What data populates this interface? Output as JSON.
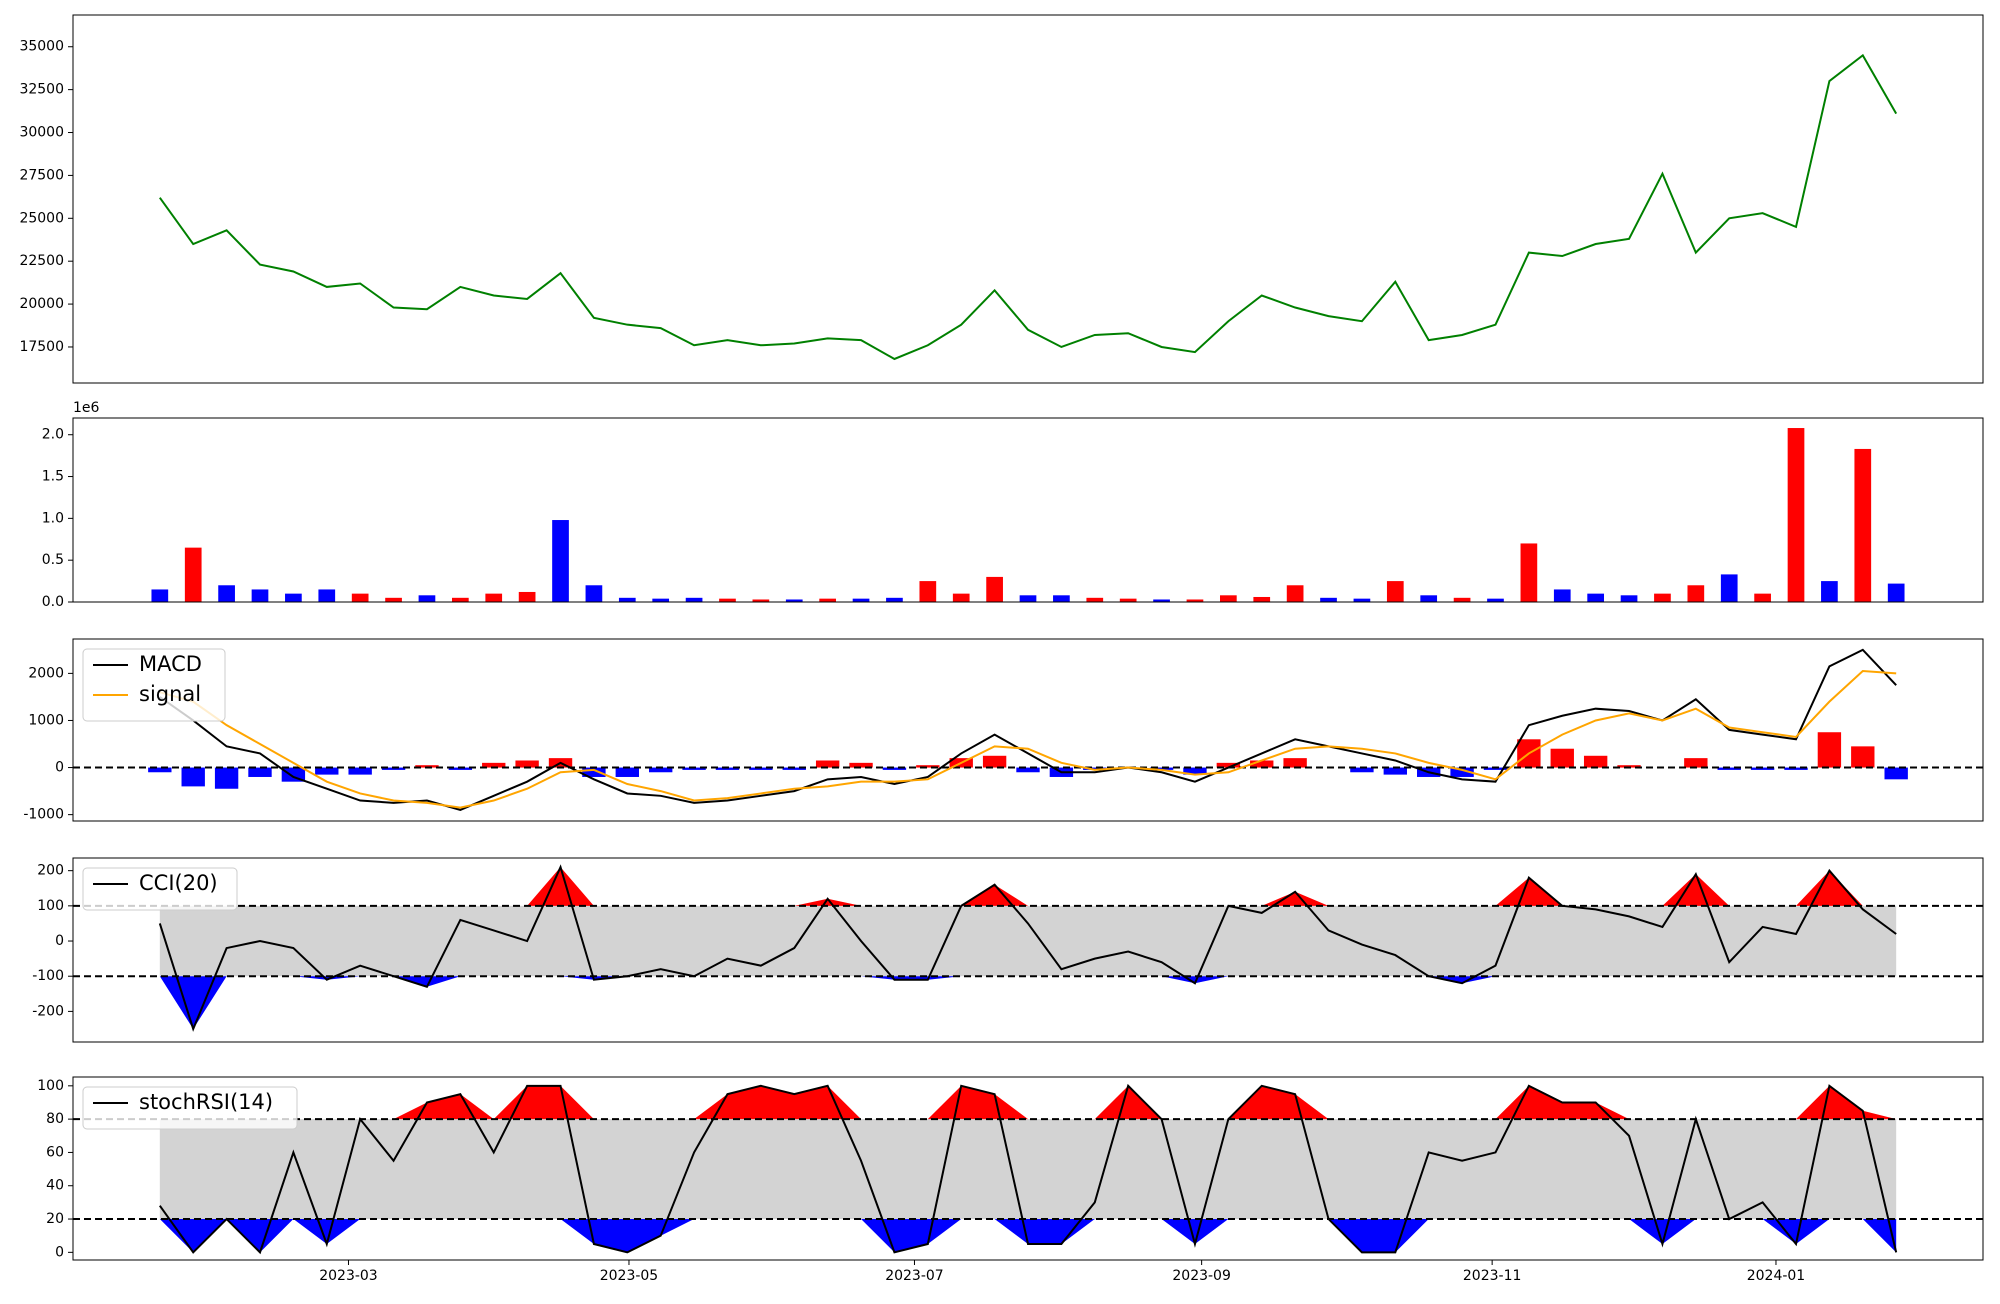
{
  "chart_data": [
    {
      "type": "line",
      "color": "green",
      "x": [
        0,
        1,
        2,
        3,
        4,
        5,
        6,
        7,
        8,
        9,
        10,
        11,
        12,
        13,
        14,
        15,
        16,
        17,
        18,
        19,
        20,
        21,
        22,
        23,
        24,
        25,
        26,
        27,
        28,
        29,
        30,
        31,
        32,
        33,
        34,
        35,
        36,
        37,
        38,
        39,
        40,
        41,
        42,
        43,
        44,
        45,
        46,
        47,
        48,
        49,
        50,
        51,
        52
      ],
      "values": [
        26200,
        23500,
        24300,
        22300,
        21900,
        21000,
        21200,
        19800,
        19700,
        21000,
        20500,
        20300,
        21800,
        19200,
        18800,
        18600,
        17600,
        17900,
        17600,
        17700,
        18000,
        17900,
        16800,
        17600,
        18800,
        20800,
        18500,
        17500,
        18200,
        18300,
        17500,
        17200,
        19000,
        20500,
        19800,
        19300,
        19000,
        21300,
        17900,
        18200,
        18800,
        23000,
        22800,
        23500,
        23800,
        27600,
        23000,
        25000,
        25300,
        24500,
        33000,
        34500,
        31100
      ],
      "xlim": [
        -2.6,
        54.6
      ],
      "ylim": [
        15400,
        36850
      ],
      "yticks": [
        17500,
        20000,
        22500,
        25000,
        27500,
        30000,
        32500,
        35000
      ]
    },
    {
      "type": "bar",
      "y_offset_label": "1e6",
      "x": [
        0,
        1,
        2,
        3,
        4,
        5,
        6,
        7,
        8,
        9,
        10,
        11,
        12,
        13,
        14,
        15,
        16,
        17,
        18,
        19,
        20,
        21,
        22,
        23,
        24,
        25,
        26,
        27,
        28,
        29,
        30,
        31,
        32,
        33,
        34,
        35,
        36,
        37,
        38,
        39,
        40,
        41,
        42,
        43,
        44,
        45,
        46,
        47,
        48,
        49,
        50,
        51,
        52
      ],
      "values": [
        150000,
        650000,
        200000,
        150000,
        100000,
        150000,
        100000,
        50000,
        80000,
        50000,
        100000,
        120000,
        980000,
        200000,
        50000,
        40000,
        50000,
        40000,
        30000,
        30000,
        40000,
        40000,
        50000,
        250000,
        100000,
        300000,
        80000,
        80000,
        50000,
        40000,
        30000,
        30000,
        80000,
        60000,
        200000,
        50000,
        40000,
        250000,
        80000,
        50000,
        40000,
        700000,
        150000,
        100000,
        80000,
        100000,
        200000,
        330000,
        100000,
        2080000,
        250000,
        1830000,
        220000
      ],
      "colors": [
        "blue",
        "red",
        "blue",
        "blue",
        "blue",
        "blue",
        "red",
        "red",
        "blue",
        "red",
        "red",
        "red",
        "blue",
        "blue",
        "blue",
        "blue",
        "blue",
        "red",
        "red",
        "blue",
        "red",
        "blue",
        "blue",
        "red",
        "red",
        "red",
        "blue",
        "blue",
        "red",
        "red",
        "blue",
        "red",
        "red",
        "red",
        "red",
        "blue",
        "blue",
        "red",
        "blue",
        "red",
        "blue",
        "red",
        "blue",
        "blue",
        "blue",
        "red",
        "red",
        "blue",
        "red",
        "red",
        "blue",
        "red",
        "blue"
      ],
      "xlim": [
        -2.6,
        54.6
      ],
      "ylim": [
        0,
        2200000
      ],
      "yticks": [
        {
          "value": 0,
          "label": "0.0"
        },
        {
          "value": 500000,
          "label": "0.5"
        },
        {
          "value": 1000000,
          "label": "1.0"
        },
        {
          "value": 1500000,
          "label": "1.5"
        },
        {
          "value": 2000000,
          "label": "2.0"
        }
      ]
    },
    {
      "type": "line",
      "hlines": [
        0
      ],
      "x": [
        0,
        1,
        2,
        3,
        4,
        5,
        6,
        7,
        8,
        9,
        10,
        11,
        12,
        13,
        14,
        15,
        16,
        17,
        18,
        19,
        20,
        21,
        22,
        23,
        24,
        25,
        26,
        27,
        28,
        29,
        30,
        31,
        32,
        33,
        34,
        35,
        36,
        37,
        38,
        39,
        40,
        41,
        42,
        43,
        44,
        45,
        46,
        47,
        48,
        49,
        50,
        51,
        52
      ],
      "series": [
        {
          "name": "MACD",
          "color": "black",
          "values": [
            1500,
            1000,
            450,
            300,
            -200,
            -450,
            -700,
            -750,
            -700,
            -900,
            -600,
            -300,
            100,
            -250,
            -550,
            -600,
            -750,
            -700,
            -600,
            -500,
            -250,
            -200,
            -350,
            -200,
            300,
            700,
            300,
            -100,
            -100,
            0,
            -100,
            -300,
            0,
            300,
            600,
            450,
            300,
            150,
            -100,
            -250,
            -300,
            900,
            1100,
            1250,
            1200,
            1000,
            1450,
            800,
            700,
            600,
            2150,
            2500,
            1750
          ]
        },
        {
          "name": "signal",
          "color": "orange",
          "values": [
            1600,
            1400,
            900,
            500,
            100,
            -300,
            -550,
            -700,
            -750,
            -850,
            -700,
            -450,
            -100,
            -50,
            -350,
            -500,
            -700,
            -650,
            -550,
            -450,
            -400,
            -300,
            -300,
            -250,
            100,
            450,
            400,
            100,
            -50,
            0,
            -50,
            -150,
            -100,
            150,
            400,
            450,
            400,
            300,
            100,
            -50,
            -250,
            300,
            700,
            1000,
            1150,
            1000,
            1250,
            850,
            750,
            650,
            1400,
            2050,
            2000
          ]
        }
      ],
      "histogram": {
        "values": [
          -100,
          -400,
          -450,
          -200,
          -300,
          -150,
          -150,
          -50,
          50,
          -50,
          100,
          150,
          200,
          -200,
          -200,
          -100,
          -50,
          -50,
          -50,
          -50,
          150,
          100,
          -50,
          50,
          200,
          250,
          -100,
          -200,
          -50,
          0,
          -50,
          -150,
          100,
          150,
          200,
          0,
          -100,
          -150,
          -200,
          -200,
          -50,
          600,
          400,
          250,
          50,
          0,
          200,
          -50,
          -50,
          -50,
          750,
          450,
          -250
        ],
        "positive_color": "red",
        "negative_color": "blue"
      },
      "xlim": [
        -2.6,
        54.6
      ],
      "ylim": [
        -1135,
        2730
      ],
      "yticks": [
        -1000,
        0,
        1000,
        2000
      ],
      "legend": "upper left"
    },
    {
      "type": "band",
      "hlines": [
        100,
        -100
      ],
      "band_color": "lightgray",
      "above_color": "red",
      "below_color": "blue",
      "x": [
        0,
        1,
        2,
        3,
        4,
        5,
        6,
        7,
        8,
        9,
        10,
        11,
        12,
        13,
        14,
        15,
        16,
        17,
        18,
        19,
        20,
        21,
        22,
        23,
        24,
        25,
        26,
        27,
        28,
        29,
        30,
        31,
        32,
        33,
        34,
        35,
        36,
        37,
        38,
        39,
        40,
        41,
        42,
        43,
        44,
        45,
        46,
        47,
        48,
        49,
        50,
        51,
        52
      ],
      "series": [
        {
          "name": "CCI(20)",
          "color": "black",
          "values": [
            50,
            -250,
            -20,
            0,
            -20,
            -110,
            -70,
            -100,
            -130,
            60,
            30,
            0,
            210,
            -110,
            -100,
            -80,
            -100,
            -50,
            -70,
            -20,
            120,
            0,
            -110,
            -110,
            100,
            160,
            50,
            -80,
            -50,
            -30,
            -60,
            -120,
            100,
            80,
            140,
            30,
            -10,
            -40,
            -100,
            -120,
            -70,
            180,
            100,
            90,
            70,
            40,
            190,
            -60,
            40,
            20,
            200,
            90,
            20
          ]
        }
      ],
      "xlim": [
        -2.6,
        54.6
      ],
      "ylim": [
        -287,
        236
      ],
      "yticks": [
        -200,
        -100,
        0,
        100,
        200
      ],
      "legend": "upper left"
    },
    {
      "type": "band",
      "hlines": [
        80,
        20
      ],
      "band_color": "lightgray",
      "above_color": "red",
      "below_color": "blue",
      "x": [
        0,
        1,
        2,
        3,
        4,
        5,
        6,
        7,
        8,
        9,
        10,
        11,
        12,
        13,
        14,
        15,
        16,
        17,
        18,
        19,
        20,
        21,
        22,
        23,
        24,
        25,
        26,
        27,
        28,
        29,
        30,
        31,
        32,
        33,
        34,
        35,
        36,
        37,
        38,
        39,
        40,
        41,
        42,
        43,
        44,
        45,
        46,
        47,
        48,
        49,
        50,
        51,
        52
      ],
      "series": [
        {
          "name": "stochRSI(14)",
          "color": "black",
          "values": [
            28,
            0,
            20,
            0,
            60,
            5,
            80,
            55,
            90,
            95,
            60,
            100,
            100,
            5,
            0,
            10,
            60,
            95,
            100,
            95,
            100,
            55,
            0,
            5,
            100,
            95,
            5,
            5,
            30,
            100,
            80,
            5,
            80,
            100,
            95,
            20,
            0,
            0,
            60,
            55,
            60,
            100,
            90,
            90,
            70,
            5,
            80,
            20,
            30,
            5,
            100,
            85,
            0
          ]
        }
      ],
      "xlim": [
        -2.6,
        54.6
      ],
      "ylim": [
        -4.6,
        105.3
      ],
      "yticks": [
        0,
        20,
        40,
        60,
        80,
        100
      ],
      "legend": "upper left",
      "xticks": [
        {
          "value": 5.65,
          "label": "2023-03"
        },
        {
          "value": 14.05,
          "label": "2023-05"
        },
        {
          "value": 22.6,
          "label": "2023-07"
        },
        {
          "value": 31.2,
          "label": "2023-09"
        },
        {
          "value": 39.9,
          "label": "2023-11"
        },
        {
          "value": 48.4,
          "label": "2024-01"
        }
      ]
    }
  ]
}
